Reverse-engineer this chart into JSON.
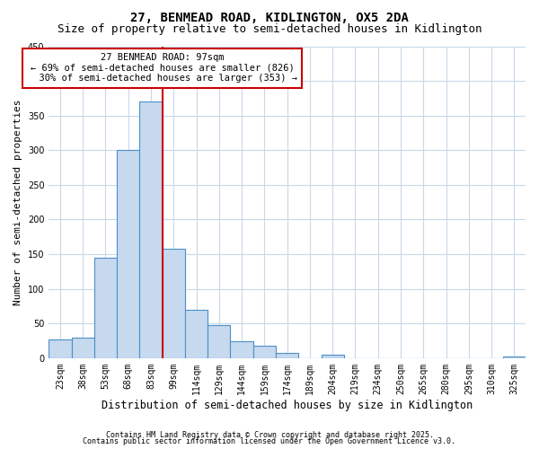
{
  "title1": "27, BENMEAD ROAD, KIDLINGTON, OX5 2DA",
  "title2": "Size of property relative to semi-detached houses in Kidlington",
  "xlabel": "Distribution of semi-detached houses by size in Kidlington",
  "ylabel": "Number of semi-detached properties",
  "categories": [
    "23sqm",
    "38sqm",
    "53sqm",
    "68sqm",
    "83sqm",
    "99sqm",
    "114sqm",
    "129sqm",
    "144sqm",
    "159sqm",
    "174sqm",
    "189sqm",
    "204sqm",
    "219sqm",
    "234sqm",
    "250sqm",
    "265sqm",
    "280sqm",
    "295sqm",
    "310sqm",
    "325sqm"
  ],
  "values": [
    27,
    30,
    145,
    300,
    370,
    158,
    70,
    48,
    24,
    18,
    7,
    0,
    5,
    0,
    0,
    0,
    0,
    0,
    0,
    0,
    2
  ],
  "bar_color": "#c6d9ef",
  "bar_edge_color": "#4a90c8",
  "grid_color": "#c8d8e8",
  "vline_color": "#cc0000",
  "annotation_line1": "27 BENMEAD ROAD: 97sqm",
  "annotation_line2": "← 69% of semi-detached houses are smaller (826)",
  "annotation_line3": "  30% of semi-detached houses are larger (353) →",
  "annotation_box_color": "#ffffff",
  "annotation_box_edge": "#cc0000",
  "ylim": [
    0,
    450
  ],
  "yticks": [
    0,
    50,
    100,
    150,
    200,
    250,
    300,
    350,
    400,
    450
  ],
  "background_color": "#ffffff",
  "footer1": "Contains HM Land Registry data © Crown copyright and database right 2025.",
  "footer2": "Contains public sector information licensed under the Open Government Licence v3.0.",
  "title_fontsize": 10,
  "subtitle_fontsize": 9,
  "tick_fontsize": 7,
  "ylabel_fontsize": 8,
  "xlabel_fontsize": 8.5,
  "annotation_fontsize": 7.5,
  "footer_fontsize": 6
}
